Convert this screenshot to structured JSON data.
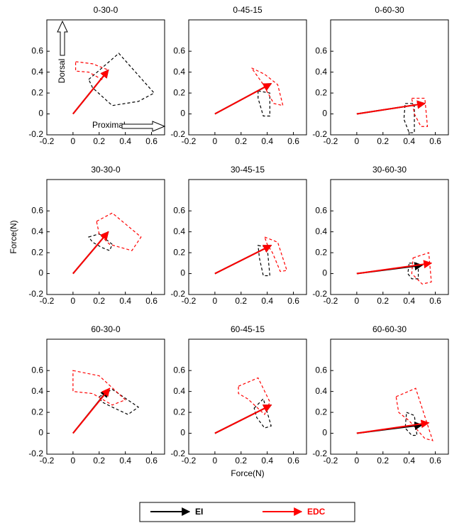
{
  "chart_data": [
    {
      "type": "quiver",
      "title": "0-30-0",
      "xlim": [
        -0.2,
        0.7
      ],
      "ylim": [
        -0.2,
        0.9
      ],
      "xticks": [
        -0.2,
        0,
        0.2,
        0.4,
        0.6
      ],
      "yticks": [
        -0.2,
        0,
        0.2,
        0.4,
        0.6
      ],
      "annotations": [
        "Dorsal",
        "Proximal"
      ],
      "series": [
        {
          "name": "EI",
          "color": "#000000",
          "x": [
            0,
            0.27
          ],
          "y": [
            0,
            0.42
          ]
        },
        {
          "name": "EDC",
          "color": "#ff0000",
          "x": [
            0,
            0.27
          ],
          "y": [
            0,
            0.42
          ]
        }
      ],
      "regions": [
        {
          "color": "#000000",
          "x": [
            0.12,
            0.35,
            0.62,
            0.5,
            0.3,
            0.15
          ],
          "y": [
            0.33,
            0.58,
            0.2,
            0.12,
            0.08,
            0.25
          ]
        },
        {
          "color": "#ff0000",
          "x": [
            0.02,
            0.15,
            0.27,
            0.22,
            0.12,
            0.02
          ],
          "y": [
            0.5,
            0.48,
            0.42,
            0.33,
            0.4,
            0.41
          ]
        }
      ]
    },
    {
      "type": "quiver",
      "title": "0-45-15",
      "xlim": [
        -0.2,
        0.7
      ],
      "ylim": [
        -0.2,
        0.9
      ],
      "xticks": [
        -0.2,
        0,
        0.2,
        0.4,
        0.6
      ],
      "yticks": [
        -0.2,
        0,
        0.2,
        0.4,
        0.6
      ],
      "series": [
        {
          "color": "#000000",
          "x": [
            0,
            0.43
          ],
          "y": [
            0,
            0.29
          ]
        },
        {
          "color": "#ff0000",
          "x": [
            0,
            0.43
          ],
          "y": [
            0,
            0.29
          ]
        }
      ],
      "regions": [
        {
          "color": "#000000",
          "x": [
            0.33,
            0.42,
            0.42,
            0.37,
            0.33
          ],
          "y": [
            0.22,
            0.2,
            -0.02,
            -0.02,
            0.15
          ]
        },
        {
          "color": "#ff0000",
          "x": [
            0.28,
            0.38,
            0.48,
            0.52,
            0.45,
            0.36
          ],
          "y": [
            0.44,
            0.38,
            0.28,
            0.08,
            0.1,
            0.3
          ]
        }
      ]
    },
    {
      "type": "quiver",
      "title": "0-60-30",
      "xlim": [
        -0.2,
        0.7
      ],
      "ylim": [
        -0.2,
        0.9
      ],
      "xticks": [
        -0.2,
        0,
        0.2,
        0.4,
        0.6
      ],
      "yticks": [
        -0.2,
        0,
        0.2,
        0.4,
        0.6
      ],
      "series": [
        {
          "color": "#000000",
          "x": [
            0,
            0.52
          ],
          "y": [
            0,
            0.1
          ]
        },
        {
          "color": "#ff0000",
          "x": [
            0,
            0.52
          ],
          "y": [
            0,
            0.1
          ]
        }
      ],
      "regions": [
        {
          "color": "#000000",
          "x": [
            0.37,
            0.44,
            0.44,
            0.4,
            0.36
          ],
          "y": [
            0.1,
            0.1,
            -0.18,
            -0.18,
            -0.05
          ]
        },
        {
          "color": "#ff0000",
          "x": [
            0.42,
            0.52,
            0.54,
            0.49,
            0.44
          ],
          "y": [
            0.15,
            0.15,
            -0.12,
            -0.12,
            0.0
          ]
        }
      ]
    },
    {
      "type": "quiver",
      "title": "30-30-0",
      "ylabel": "Force(N)",
      "xlim": [
        -0.2,
        0.7
      ],
      "ylim": [
        -0.2,
        0.9
      ],
      "xticks": [
        -0.2,
        0,
        0.2,
        0.4,
        0.6
      ],
      "yticks": [
        -0.2,
        0,
        0.2,
        0.4,
        0.6
      ],
      "series": [
        {
          "color": "#000000",
          "x": [
            0,
            0.27
          ],
          "y": [
            0,
            0.4
          ]
        },
        {
          "color": "#ff0000",
          "x": [
            0,
            0.27
          ],
          "y": [
            0,
            0.4
          ]
        }
      ],
      "regions": [
        {
          "color": "#000000",
          "x": [
            0.12,
            0.2,
            0.3,
            0.28,
            0.22,
            0.15
          ],
          "y": [
            0.35,
            0.38,
            0.28,
            0.22,
            0.25,
            0.3
          ]
        },
        {
          "color": "#ff0000",
          "x": [
            0.18,
            0.3,
            0.52,
            0.45,
            0.28,
            0.2
          ],
          "y": [
            0.5,
            0.58,
            0.35,
            0.22,
            0.28,
            0.38
          ]
        }
      ]
    },
    {
      "type": "quiver",
      "title": "30-45-15",
      "xlim": [
        -0.2,
        0.7
      ],
      "ylim": [
        -0.2,
        0.9
      ],
      "xticks": [
        -0.2,
        0,
        0.2,
        0.4,
        0.6
      ],
      "yticks": [
        -0.2,
        0,
        0.2,
        0.4,
        0.6
      ],
      "series": [
        {
          "color": "#000000",
          "x": [
            0,
            0.43
          ],
          "y": [
            0,
            0.27
          ]
        },
        {
          "color": "#ff0000",
          "x": [
            0,
            0.43
          ],
          "y": [
            0,
            0.27
          ]
        }
      ],
      "regions": [
        {
          "color": "#000000",
          "x": [
            0.33,
            0.4,
            0.42,
            0.37,
            0.34
          ],
          "y": [
            0.27,
            0.25,
            -0.02,
            -0.02,
            0.15
          ]
        },
        {
          "color": "#ff0000",
          "x": [
            0.38,
            0.48,
            0.55,
            0.5,
            0.44,
            0.4
          ],
          "y": [
            0.35,
            0.3,
            0.03,
            0.02,
            0.2,
            0.28
          ]
        }
      ]
    },
    {
      "type": "quiver",
      "title": "30-60-30",
      "xlim": [
        -0.2,
        0.7
      ],
      "ylim": [
        -0.2,
        0.9
      ],
      "xticks": [
        -0.2,
        0,
        0.2,
        0.4,
        0.6
      ],
      "yticks": [
        -0.2,
        0,
        0.2,
        0.4,
        0.6
      ],
      "series": [
        {
          "color": "#000000",
          "x": [
            0,
            0.5
          ],
          "y": [
            0,
            0.08
          ]
        },
        {
          "color": "#ff0000",
          "x": [
            0,
            0.57
          ],
          "y": [
            0,
            0.1
          ]
        }
      ],
      "regions": [
        {
          "color": "#000000",
          "x": [
            0.4,
            0.47,
            0.47,
            0.42,
            0.39
          ],
          "y": [
            0.1,
            0.1,
            -0.05,
            -0.05,
            0.0
          ]
        },
        {
          "color": "#ff0000",
          "x": [
            0.43,
            0.55,
            0.57,
            0.5,
            0.42
          ],
          "y": [
            0.15,
            0.2,
            -0.08,
            -0.1,
            0.0
          ]
        }
      ]
    },
    {
      "type": "quiver",
      "title": "60-30-0",
      "xlim": [
        -0.2,
        0.7
      ],
      "ylim": [
        -0.2,
        0.9
      ],
      "xticks": [
        -0.2,
        0,
        0.2,
        0.4,
        0.6
      ],
      "yticks": [
        -0.2,
        0,
        0.2,
        0.4,
        0.6
      ],
      "series": [
        {
          "color": "#000000",
          "x": [
            0,
            0.27
          ],
          "y": [
            0,
            0.42
          ]
        },
        {
          "color": "#ff0000",
          "x": [
            0,
            0.28
          ],
          "y": [
            0,
            0.43
          ]
        }
      ],
      "regions": [
        {
          "color": "#000000",
          "x": [
            0.2,
            0.3,
            0.5,
            0.42,
            0.3,
            0.22
          ],
          "y": [
            0.35,
            0.42,
            0.25,
            0.18,
            0.25,
            0.3
          ]
        },
        {
          "color": "#ff0000",
          "x": [
            0,
            0.2,
            0.4,
            0.3,
            0.15,
            0
          ],
          "y": [
            0.6,
            0.55,
            0.32,
            0.27,
            0.38,
            0.4
          ]
        }
      ]
    },
    {
      "type": "quiver",
      "title": "60-45-15",
      "xlabel": "Force(N)",
      "xlim": [
        -0.2,
        0.7
      ],
      "ylim": [
        -0.2,
        0.9
      ],
      "xticks": [
        -0.2,
        0,
        0.2,
        0.4,
        0.6
      ],
      "yticks": [
        -0.2,
        0,
        0.2,
        0.4,
        0.6
      ],
      "series": [
        {
          "color": "#000000",
          "x": [
            0,
            0.43
          ],
          "y": [
            0,
            0.27
          ]
        },
        {
          "color": "#ff0000",
          "x": [
            0,
            0.43
          ],
          "y": [
            0,
            0.27
          ]
        }
      ],
      "regions": [
        {
          "color": "#000000",
          "x": [
            0.3,
            0.37,
            0.43,
            0.38,
            0.32
          ],
          "y": [
            0.24,
            0.33,
            0.07,
            0.05,
            0.15
          ]
        },
        {
          "color": "#ff0000",
          "x": [
            0.18,
            0.33,
            0.42,
            0.38,
            0.25,
            0.18
          ],
          "y": [
            0.45,
            0.53,
            0.3,
            0.18,
            0.33,
            0.38
          ]
        }
      ]
    },
    {
      "type": "quiver",
      "title": "60-60-30",
      "xlim": [
        -0.2,
        0.7
      ],
      "ylim": [
        -0.2,
        0.9
      ],
      "xticks": [
        -0.2,
        0,
        0.2,
        0.4,
        0.6
      ],
      "yticks": [
        -0.2,
        0,
        0.2,
        0.4,
        0.6
      ],
      "series": [
        {
          "color": "#000000",
          "x": [
            0,
            0.5
          ],
          "y": [
            0,
            0.08
          ]
        },
        {
          "color": "#ff0000",
          "x": [
            0,
            0.55
          ],
          "y": [
            0,
            0.1
          ]
        }
      ],
      "regions": [
        {
          "color": "#000000",
          "x": [
            0.38,
            0.44,
            0.46,
            0.42,
            0.37
          ],
          "y": [
            0.2,
            0.17,
            -0.02,
            -0.02,
            0.05
          ]
        },
        {
          "color": "#ff0000",
          "x": [
            0.3,
            0.45,
            0.58,
            0.52,
            0.4,
            0.32
          ],
          "y": [
            0.35,
            0.43,
            -0.07,
            -0.05,
            0.12,
            0.2
          ]
        }
      ]
    }
  ]
}
